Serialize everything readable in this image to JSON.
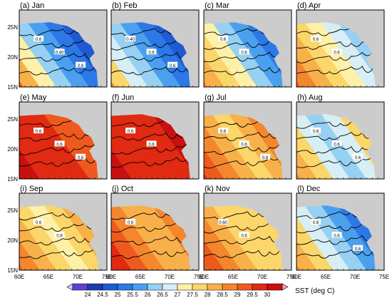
{
  "figure": {
    "panels": [
      {
        "label": "(a) Jan",
        "month": "Jan",
        "contour_labels": [
          "0.6",
          "0.40",
          "0.6"
        ]
      },
      {
        "label": "(b) Feb",
        "month": "Feb",
        "contour_labels": [
          "0.40",
          "0.6",
          "0.6"
        ]
      },
      {
        "label": "(c) Mar",
        "month": "Mar",
        "contour_labels": [
          "0.6",
          "0.6"
        ]
      },
      {
        "label": "(d) Apr",
        "month": "Apr",
        "contour_labels": [
          "0.6",
          "0.6"
        ]
      },
      {
        "label": "(e) May",
        "month": "May",
        "contour_labels": [
          "0.6",
          "0.6",
          "0.6"
        ]
      },
      {
        "label": "(f) Jun",
        "month": "Jun",
        "contour_labels": [
          "0.6",
          "0.6"
        ]
      },
      {
        "label": "(g) Jul",
        "month": "Jul",
        "contour_labels": [
          "0.6",
          "0.6",
          "0.6"
        ]
      },
      {
        "label": "(h) Aug",
        "month": "Aug",
        "contour_labels": [
          "0.6",
          "0.6",
          "0.6"
        ]
      },
      {
        "label": "(i) Sep",
        "month": "Sep",
        "contour_labels": [
          "0.6",
          "0.6"
        ]
      },
      {
        "label": "(j) Oct",
        "month": "Oct",
        "contour_labels": [
          "0.6"
        ]
      },
      {
        "label": "(k) Nov",
        "month": "Nov",
        "contour_labels": [
          "0.60",
          "0.6"
        ]
      },
      {
        "label": "(l) Dec",
        "month": "Dec",
        "contour_labels": [
          "0.6",
          "0.6",
          "0.6"
        ]
      }
    ],
    "lat_ticks": [
      "25N",
      "20N",
      "15N"
    ],
    "lon_ticks": [
      "60E",
      "65E",
      "70E",
      "75E"
    ],
    "colorbar": {
      "title": "SST (deg C)",
      "tick_labels": [
        "24",
        "24.5",
        "25",
        "25.5",
        "26",
        "26.5",
        "27",
        "27.5",
        "28",
        "28.5",
        "29",
        "29.5",
        "30"
      ],
      "colors": [
        "#d0d0ff",
        "#6040d0",
        "#1e3ca8",
        "#1e5ad2",
        "#2c78e6",
        "#4aa0ee",
        "#96d0f2",
        "#d6eef4",
        "#fdf0a8",
        "#fbd66a",
        "#f8b04a",
        "#f4862e",
        "#ee5a1e",
        "#e02a12",
        "#c81010",
        "#f4a0a8"
      ]
    },
    "colors": {
      "land": "#cccccc",
      "contour": "#000000",
      "frame": "#000000"
    }
  }
}
